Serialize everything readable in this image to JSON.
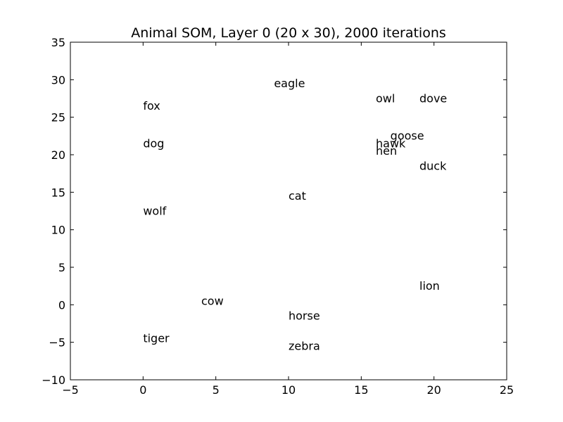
{
  "chart_data": {
    "type": "scatter",
    "title": "Animal SOM, Layer 0 (20 x 30), 2000 iterations",
    "xlabel": "",
    "ylabel": "",
    "xlim": [
      -5,
      25
    ],
    "ylim": [
      -10,
      35
    ],
    "xticks": [
      -5,
      0,
      5,
      10,
      15,
      20,
      25
    ],
    "yticks": [
      -10,
      -5,
      0,
      5,
      10,
      15,
      20,
      25,
      30,
      35
    ],
    "grid": false,
    "marker": "text-only",
    "points": [
      {
        "label": "eagle",
        "x": 9,
        "y": 29
      },
      {
        "label": "owl",
        "x": 16,
        "y": 27
      },
      {
        "label": "dove",
        "x": 19,
        "y": 27
      },
      {
        "label": "fox",
        "x": 0,
        "y": 26
      },
      {
        "label": "goose",
        "x": 17,
        "y": 22
      },
      {
        "label": "hawk",
        "x": 16,
        "y": 21
      },
      {
        "label": "dog",
        "x": 0,
        "y": 21
      },
      {
        "label": "hen",
        "x": 16,
        "y": 20
      },
      {
        "label": "duck",
        "x": 19,
        "y": 18
      },
      {
        "label": "cat",
        "x": 10,
        "y": 14
      },
      {
        "label": "wolf",
        "x": 0,
        "y": 12
      },
      {
        "label": "lion",
        "x": 19,
        "y": 2
      },
      {
        "label": "cow",
        "x": 4,
        "y": 0
      },
      {
        "label": "horse",
        "x": 10,
        "y": -2
      },
      {
        "label": "tiger",
        "x": 0,
        "y": -5
      },
      {
        "label": "zebra",
        "x": 10,
        "y": -6
      }
    ]
  }
}
